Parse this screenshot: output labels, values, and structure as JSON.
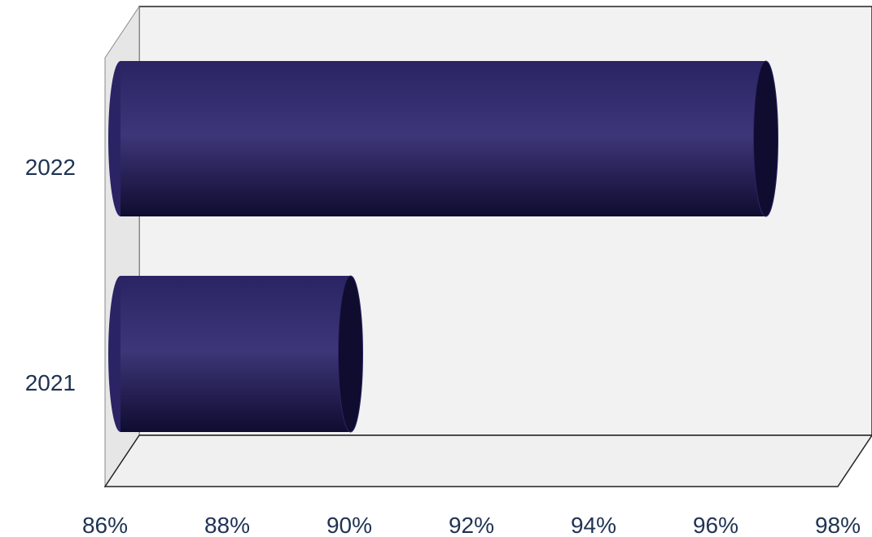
{
  "chart_data": {
    "type": "bar",
    "orientation": "horizontal",
    "style": "3d-cylinder",
    "title": "",
    "xlabel": "",
    "ylabel": "",
    "categories": [
      "2021",
      "2022"
    ],
    "values": [
      90.5,
      97.3
    ],
    "xlim": [
      86,
      98
    ],
    "x_ticks": [
      "86%",
      "88%",
      "90%",
      "92%",
      "94%",
      "96%",
      "98%"
    ],
    "grid": false,
    "legend": "none",
    "colors": {
      "bar": "#2a2464",
      "bar_highlight": "#3d3678",
      "bar_dark": "#0f0c30",
      "back_wall": "#f2f2f2",
      "side_wall": "#e6e6e6",
      "floor": "#f0f0f0",
      "text": "#1f3353"
    }
  }
}
